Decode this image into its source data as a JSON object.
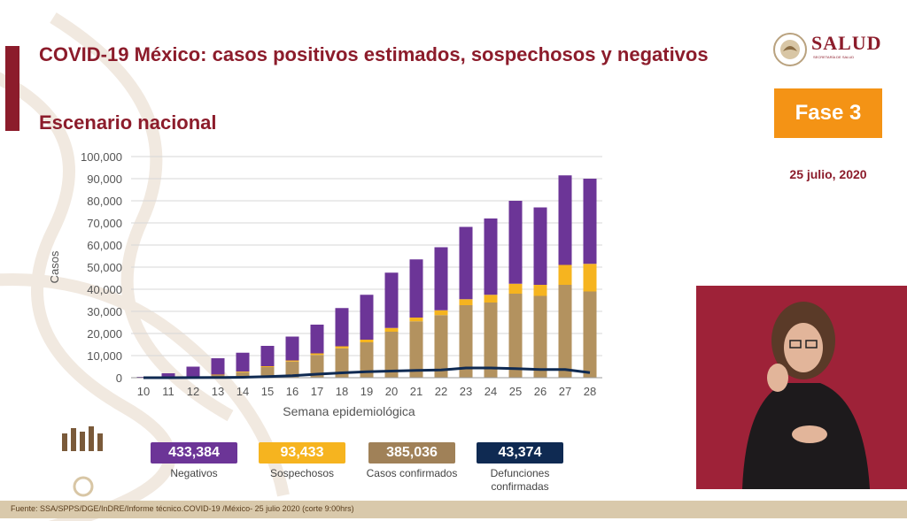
{
  "header": {
    "title": "COVID-19 México: casos positivos estimados, sospechosos y negativos",
    "subtitle": "Escenario nacional"
  },
  "brand": {
    "logo_text": "SALUD",
    "logo_sub": "SECRETARÍA DE SALUD",
    "color": "#8c1c2b"
  },
  "phase": {
    "label": "Fase 3",
    "date": "25 julio, 2020",
    "color": "#f49315"
  },
  "chart_data": {
    "type": "bar",
    "stacked": true,
    "xlabel": "Semana epidemiológica",
    "ylabel": "Casos",
    "ylim": [
      0,
      100000
    ],
    "yticks": [
      "0",
      "10,000",
      "20,000",
      "30,000",
      "40,000",
      "50,000",
      "60,000",
      "70,000",
      "80,000",
      "90,000",
      "100,000"
    ],
    "categories": [
      "10",
      "11",
      "12",
      "13",
      "14",
      "15",
      "16",
      "17",
      "18",
      "19",
      "20",
      "21",
      "22",
      "23",
      "24",
      "25",
      "26",
      "27",
      "28"
    ],
    "grid": true,
    "series": [
      {
        "name": "Casos confirmados",
        "color": "#b3925f",
        "values": [
          0,
          150,
          400,
          1200,
          2500,
          4800,
          7300,
          10300,
          13300,
          16000,
          20800,
          25500,
          28300,
          32800,
          34000,
          38000,
          37000,
          42000,
          39000
        ]
      },
      {
        "name": "Sospechosos",
        "color": "#f6b41f",
        "values": [
          0,
          50,
          100,
          200,
          300,
          400,
          500,
          700,
          900,
          1200,
          1700,
          1700,
          2200,
          2700,
          3500,
          4500,
          5000,
          9000,
          12500
        ]
      },
      {
        "name": "Negativos",
        "color": "#6c3597",
        "values": [
          400,
          1800,
          4500,
          7400,
          8500,
          9200,
          10800,
          13000,
          17300,
          20300,
          25000,
          26300,
          28500,
          32700,
          34500,
          37500,
          35000,
          40500,
          38500
        ]
      },
      {
        "name": "Defunciones confirmadas",
        "color": "#0f2a52",
        "kind": "line",
        "values": [
          0,
          10,
          30,
          80,
          200,
          500,
          900,
          1600,
          2200,
          2700,
          3000,
          3300,
          3500,
          4400,
          4400,
          4100,
          3700,
          3700,
          2300
        ]
      }
    ]
  },
  "stats": [
    {
      "value": "433,384",
      "label": "Negativos",
      "color": "#6c3597"
    },
    {
      "value": "93,433",
      "label": "Sospechosos",
      "color": "#f6b41f"
    },
    {
      "value": "385,036",
      "label": "Casos confirmados",
      "color": "#a08158"
    },
    {
      "value": "43,374",
      "label": "Defunciones confirmadas",
      "color": "#0f2a52"
    }
  ],
  "footer": {
    "source": "Fuente: SSA/SPPS/DGE/InDRE/Informe técnico.COVID-19 /México- 25 julio 2020 (corte 9:00hrs)"
  }
}
